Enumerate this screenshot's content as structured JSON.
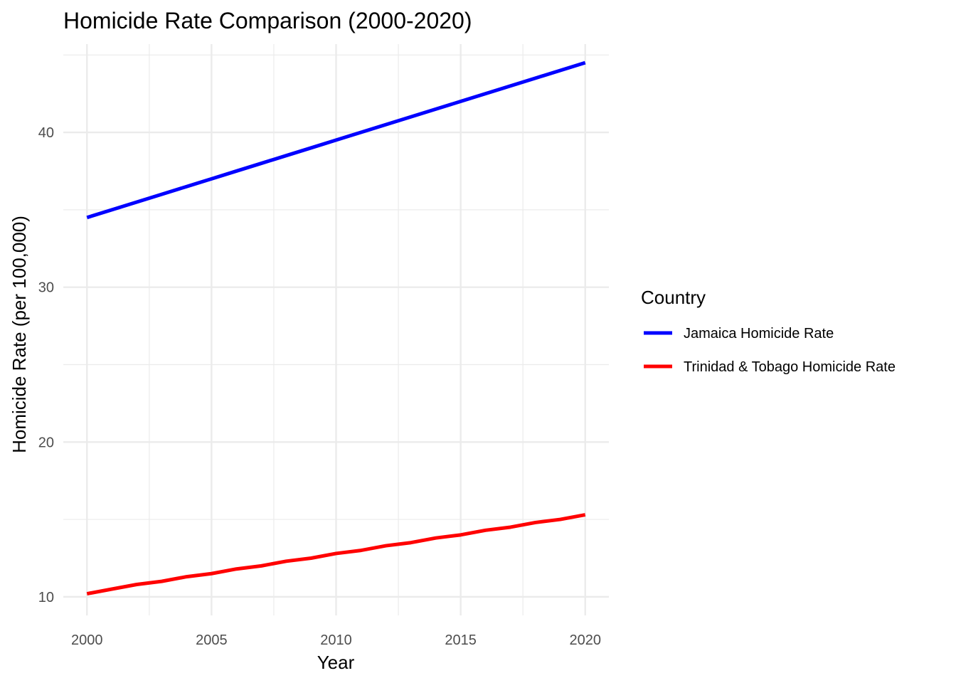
{
  "chart_data": {
    "type": "line",
    "title": "Homicide Rate Comparison (2000-2020)",
    "xlabel": "Year",
    "ylabel": "Homicide Rate (per 100,000)",
    "xlim": [
      1999.05,
      2020.95
    ],
    "ylim": [
      8.8,
      45.7
    ],
    "x_ticks": [
      2000,
      2005,
      2010,
      2015,
      2020
    ],
    "y_ticks": [
      10,
      20,
      30,
      40
    ],
    "grid": true,
    "legend": {
      "title": "Country",
      "position": "right"
    },
    "x": [
      2000,
      2001,
      2002,
      2003,
      2004,
      2005,
      2006,
      2007,
      2008,
      2009,
      2010,
      2011,
      2012,
      2013,
      2014,
      2015,
      2016,
      2017,
      2018,
      2019,
      2020
    ],
    "series": [
      {
        "name": "Jamaica Homicide Rate",
        "color": "#0000ff",
        "values": [
          34.5,
          35.0,
          35.5,
          36.0,
          36.5,
          37.0,
          37.5,
          38.0,
          38.5,
          39.0,
          39.5,
          40.0,
          40.5,
          41.0,
          41.5,
          42.0,
          42.5,
          43.0,
          43.5,
          44.0,
          44.5
        ]
      },
      {
        "name": "Trinidad & Tobago Homicide Rate",
        "color": "#ff0000",
        "values": [
          10.2,
          10.5,
          10.8,
          11.0,
          11.3,
          11.5,
          11.8,
          12.0,
          12.3,
          12.5,
          12.8,
          13.0,
          13.3,
          13.5,
          13.8,
          14.0,
          14.3,
          14.5,
          14.8,
          15.0,
          15.3
        ]
      }
    ]
  }
}
